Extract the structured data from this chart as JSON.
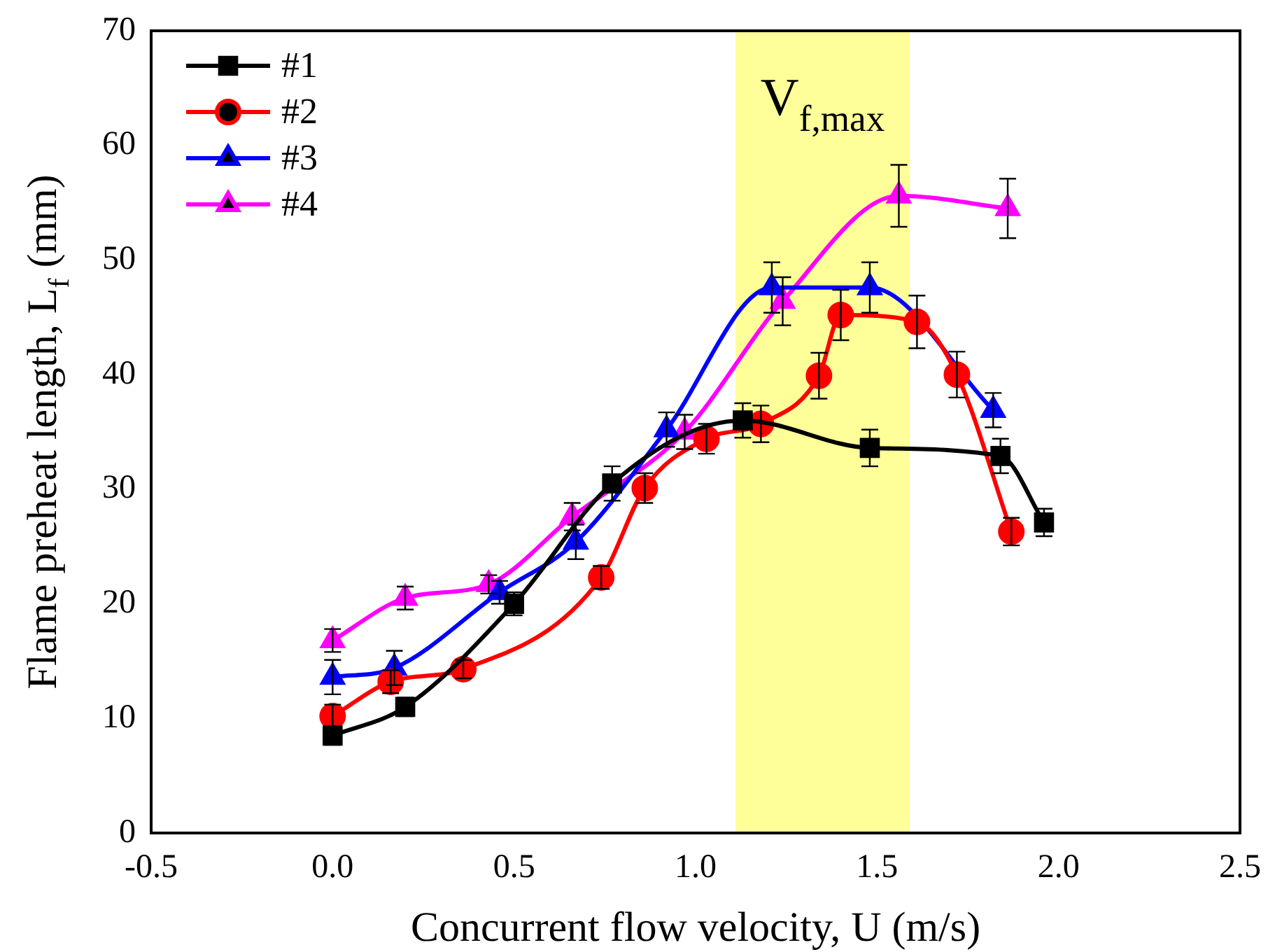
{
  "chart_data": {
    "type": "line",
    "xlabel": "Concurrent flow velocity, U (m/s)",
    "ylabel": "Flame preheat length, L$_{f}$ (mm)",
    "xlim": [
      -0.5,
      2.5
    ],
    "xticks": [
      -0.5,
      {
        "value": 0,
        "label": "0.0"
      },
      0.5,
      {
        "value": 1,
        "label": "1.0"
      },
      1.5,
      {
        "value": 2,
        "label": "2.0"
      },
      2.5
    ],
    "ylim": [
      0,
      70
    ],
    "yticks": [
      0,
      10,
      20,
      30,
      40,
      50,
      60,
      70
    ],
    "grid": false,
    "legend": "top left",
    "bands": [
      {
        "axis": "x",
        "from": 1.11,
        "to": 1.59,
        "label": "V$_{f,max}$",
        "color": "#ffff99"
      }
    ],
    "series": [
      {
        "name": "#1",
        "color": "#000000",
        "marker": "square",
        "x": [
          0,
          0.2,
          0.5,
          0.77,
          1.13,
          1.48,
          1.84,
          1.96
        ],
        "values": [
          8.5,
          11.0,
          20.0,
          30.5,
          36.0,
          33.6,
          32.9,
          27.1
        ],
        "errors": [
          0.8,
          0.8,
          1,
          1.5,
          1.5,
          1.6,
          1.5,
          1.2
        ]
      },
      {
        "name": "#2",
        "color": "#ff0000",
        "marker": "circle",
        "x": [
          0,
          0.16,
          0.36,
          0.74,
          0.86,
          1.03,
          1.18,
          1.34,
          1.4,
          1.61,
          1.72,
          1.87
        ],
        "values": [
          10.2,
          13.2,
          14.3,
          22.3,
          30.1,
          34.4,
          35.7,
          39.9,
          45.2,
          44.6,
          40.0,
          26.3
        ],
        "errors": [
          1,
          1,
          0.8,
          1,
          1.3,
          1.3,
          1.6,
          2,
          2.2,
          2.3,
          2,
          1.2
        ]
      },
      {
        "name": "#3",
        "color": "#0000ff",
        "marker": "triangle",
        "x": [
          0,
          0.17,
          0.46,
          0.67,
          0.92,
          1.21,
          1.48,
          1.82
        ],
        "values": [
          13.6,
          14.4,
          21.0,
          25.4,
          35.2,
          47.6,
          47.6,
          36.9
        ],
        "errors": [
          1.5,
          1.5,
          1,
          1.5,
          1.5,
          2.2,
          2.2,
          1.5
        ]
      },
      {
        "name": "#4",
        "color": "#ff00ff",
        "marker": "triangle",
        "x": [
          0,
          0.2,
          0.43,
          0.66,
          0.97,
          1.24,
          1.56,
          1.86
        ],
        "values": [
          16.8,
          20.5,
          21.7,
          27.6,
          35.0,
          46.4,
          55.6,
          54.5
        ],
        "errors": [
          1,
          1,
          0.8,
          1.2,
          1.5,
          2.1,
          2.7,
          2.6
        ]
      }
    ]
  }
}
